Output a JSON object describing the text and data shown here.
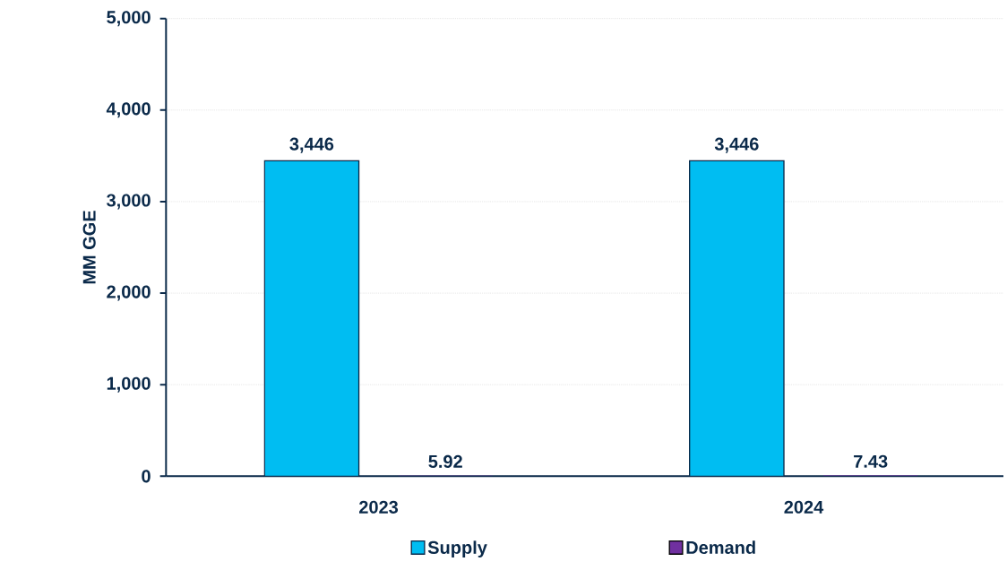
{
  "chart_data": {
    "type": "bar",
    "ylabel": "MM GGE",
    "categories": [
      "2023",
      "2024"
    ],
    "series": [
      {
        "name": "Supply",
        "color": "#00bdf2",
        "values": [
          3446,
          3446
        ],
        "value_labels": [
          "3,446",
          "3,446"
        ]
      },
      {
        "name": "Demand",
        "color": "#7030a0",
        "values": [
          5.92,
          7.43
        ],
        "value_labels": [
          "5.92",
          "7.43"
        ]
      }
    ],
    "ylim": [
      0,
      5000
    ],
    "yticks": [
      {
        "value": 0,
        "label": "0"
      },
      {
        "value": 1000,
        "label": "1,000"
      },
      {
        "value": 2000,
        "label": "2,000"
      },
      {
        "value": 3000,
        "label": "3,000"
      },
      {
        "value": 4000,
        "label": "4,000"
      },
      {
        "value": 5000,
        "label": "5,000"
      }
    ],
    "grid": "y",
    "legend": "bottom"
  }
}
